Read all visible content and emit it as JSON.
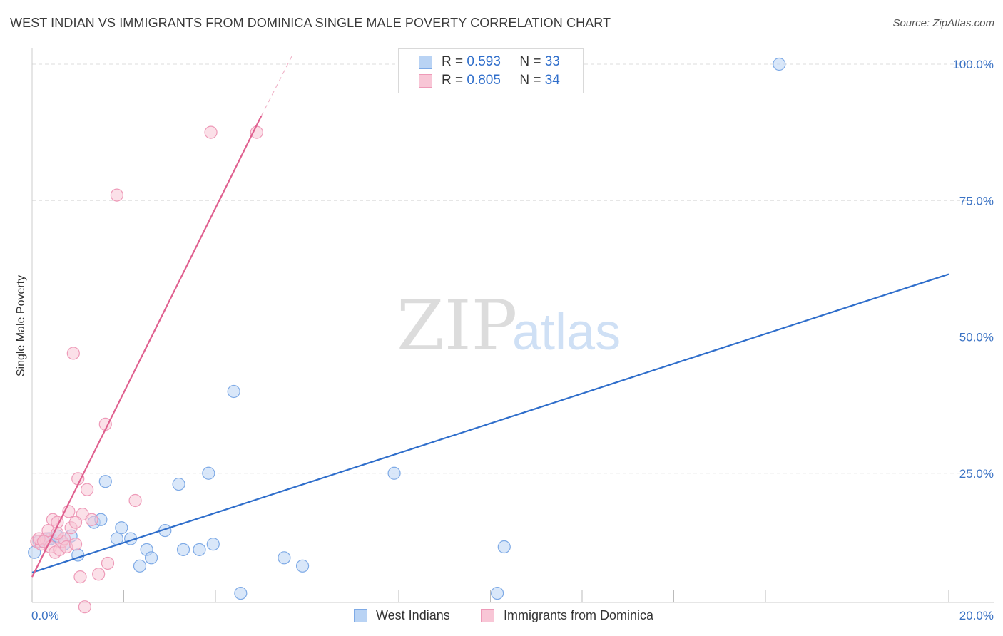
{
  "header": {
    "title": "WEST INDIAN VS IMMIGRANTS FROM DOMINICA SINGLE MALE POVERTY CORRELATION CHART",
    "source": "Source: ZipAtlas.com"
  },
  "watermark": {
    "zip": "ZIP",
    "atlas": "atlas"
  },
  "colors": {
    "blue": "#2f6ecb",
    "blue_fill": "#b9d3f4",
    "blue_stroke": "#7eaae6",
    "pink": "#e0608f",
    "pink_fill": "#f8c6d6",
    "pink_stroke": "#ee9ab8",
    "grid": "#dddddd",
    "tick_text": "#3a72c4"
  },
  "legend": {
    "rows": [
      {
        "r_label": "R =",
        "r_value": "0.593",
        "n_label": "N =",
        "n_value": "33"
      },
      {
        "r_label": "R =",
        "r_value": "0.805",
        "n_label": "N =",
        "n_value": "34"
      }
    ],
    "bottom": [
      "West Indians",
      "Immigrants from Dominica"
    ]
  },
  "chart_data": {
    "type": "scatter",
    "xlabel": "",
    "ylabel": "Single Male Poverty",
    "xlim": [
      0,
      20
    ],
    "ylim": [
      0,
      100
    ],
    "x_tick_labels": [
      "0.0%",
      "20.0%"
    ],
    "y_ticks": [
      25,
      50,
      75,
      100
    ],
    "y_tick_labels": [
      "25.0%",
      "50.0%",
      "75.0%",
      "100.0%"
    ],
    "grid": true,
    "series": [
      {
        "name": "West Indians",
        "r": 0.593,
        "n": 33,
        "trend": {
          "x0": 0.0,
          "y0": 6.8,
          "x1": 20.0,
          "y1": 61.5
        },
        "points": [
          [
            0.05,
            10.5
          ],
          [
            0.15,
            12.5
          ],
          [
            0.25,
            12.5
          ],
          [
            0.35,
            13.0
          ],
          [
            0.4,
            13.0
          ],
          [
            0.55,
            13.5
          ],
          [
            0.7,
            12.0
          ],
          [
            0.85,
            13.5
          ],
          [
            1.0,
            10.0
          ],
          [
            1.35,
            16.0
          ],
          [
            1.5,
            16.5
          ],
          [
            1.6,
            23.5
          ],
          [
            1.85,
            13.0
          ],
          [
            1.95,
            15.0
          ],
          [
            2.15,
            13.0
          ],
          [
            2.35,
            8.0
          ],
          [
            2.5,
            11.0
          ],
          [
            2.6,
            9.5
          ],
          [
            2.9,
            14.5
          ],
          [
            3.2,
            23.0
          ],
          [
            3.3,
            11.0
          ],
          [
            3.65,
            11.0
          ],
          [
            3.85,
            25.0
          ],
          [
            3.95,
            12.0
          ],
          [
            4.4,
            40.0
          ],
          [
            4.55,
            3.0
          ],
          [
            5.5,
            9.5
          ],
          [
            5.9,
            8.0
          ],
          [
            7.9,
            25.0
          ],
          [
            10.15,
            3.0
          ],
          [
            10.3,
            11.5
          ],
          [
            16.3,
            100.0
          ]
        ]
      },
      {
        "name": "Immigrants from Dominica",
        "r": 0.805,
        "n": 34,
        "trend": {
          "x0": 0.0,
          "y0": 6.0,
          "x1": 5.0,
          "y1": 90.5
        },
        "trend_dashed": {
          "x0": 5.0,
          "y0": 90.5,
          "x1": 5.7,
          "y1": 102.0
        },
        "points": [
          [
            0.1,
            12.5
          ],
          [
            0.2,
            12.0
          ],
          [
            0.3,
            13.0
          ],
          [
            0.35,
            14.5
          ],
          [
            0.4,
            11.5
          ],
          [
            0.45,
            16.5
          ],
          [
            0.5,
            10.5
          ],
          [
            0.55,
            16.0
          ],
          [
            0.6,
            11.0
          ],
          [
            0.65,
            12.5
          ],
          [
            0.7,
            13.0
          ],
          [
            0.75,
            11.5
          ],
          [
            0.8,
            18.0
          ],
          [
            0.85,
            15.0
          ],
          [
            0.9,
            47.0
          ],
          [
            0.95,
            12.0
          ],
          [
            1.0,
            24.0
          ],
          [
            1.05,
            6.0
          ],
          [
            1.1,
            17.5
          ],
          [
            1.15,
            0.5
          ],
          [
            1.2,
            22.0
          ],
          [
            1.3,
            16.5
          ],
          [
            1.45,
            6.5
          ],
          [
            1.65,
            8.5
          ],
          [
            1.6,
            34.0
          ],
          [
            1.85,
            76.0
          ],
          [
            2.25,
            20.0
          ],
          [
            3.9,
            87.5
          ],
          [
            4.9,
            87.5
          ],
          [
            0.15,
            13.0
          ],
          [
            0.25,
            12.5
          ],
          [
            0.95,
            16.0
          ],
          [
            0.55,
            14.0
          ]
        ]
      }
    ]
  }
}
